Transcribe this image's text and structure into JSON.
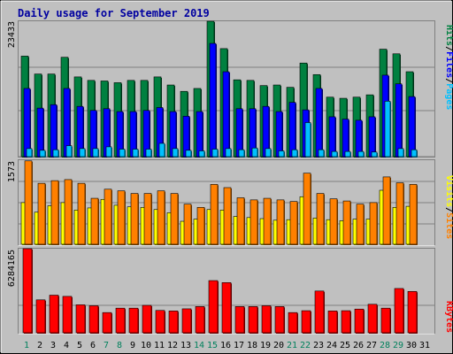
{
  "title": "Daily usage for September 2019",
  "colors": {
    "background": "#c0c0c0",
    "title": "#0000a0",
    "hits": "#008040",
    "files": "#0000ff",
    "pages": "#00c0ff",
    "visits": "#ffff00",
    "sites": "#ff8000",
    "kbytes": "#ff0000",
    "weekend_day": "#00805c",
    "weekday": "#000000"
  },
  "chart_data": [
    {
      "type": "bar",
      "name": "hits-files-pages",
      "ymax_label": "23433",
      "legend": [
        "Pages",
        "/",
        "Files",
        "/",
        "Hits"
      ],
      "ylim": [
        0,
        23433
      ],
      "categories": [
        "1",
        "2",
        "3",
        "4",
        "5",
        "6",
        "7",
        "8",
        "9",
        "10",
        "11",
        "12",
        "13",
        "14",
        "15",
        "16",
        "17",
        "18",
        "19",
        "20",
        "21",
        "22",
        "23",
        "24",
        "25",
        "26",
        "27",
        "28",
        "29",
        "30",
        "31"
      ],
      "series": [
        {
          "name": "Hits",
          "values": [
            17400,
            14300,
            14300,
            17200,
            13800,
            13200,
            13100,
            12800,
            13200,
            13200,
            13800,
            12400,
            11300,
            11800,
            23433,
            18700,
            13300,
            13200,
            12300,
            12400,
            12000,
            16200,
            14200,
            10300,
            10100,
            10300,
            10700,
            18600,
            17800,
            14700,
            null
          ]
        },
        {
          "name": "Files",
          "values": [
            11800,
            8400,
            9000,
            11800,
            8700,
            8000,
            8300,
            7800,
            7800,
            8000,
            8500,
            7800,
            7000,
            7800,
            19600,
            14700,
            8300,
            8300,
            8700,
            7800,
            9400,
            8100,
            11800,
            6900,
            6500,
            6300,
            6900,
            14100,
            12600,
            10400,
            null
          ]
        },
        {
          "name": "Pages",
          "values": [
            1400,
            1100,
            1200,
            1900,
            1400,
            1400,
            1700,
            1300,
            1300,
            1300,
            2300,
            1400,
            1100,
            1000,
            1300,
            1400,
            1200,
            1500,
            1400,
            1000,
            1200,
            5900,
            1200,
            900,
            900,
            900,
            800,
            9600,
            1400,
            1200,
            null
          ]
        }
      ]
    },
    {
      "type": "bar",
      "name": "sites-visits",
      "ymax_label": "1573",
      "legend": [
        "Sites",
        "/",
        "Visits"
      ],
      "ylim": [
        0,
        1573
      ],
      "categories": [
        "1",
        "2",
        "3",
        "4",
        "5",
        "6",
        "7",
        "8",
        "9",
        "10",
        "11",
        "12",
        "13",
        "14",
        "15",
        "16",
        "17",
        "18",
        "19",
        "20",
        "21",
        "22",
        "23",
        "24",
        "25",
        "26",
        "27",
        "28",
        "29",
        "30",
        "31"
      ],
      "series": [
        {
          "name": "Sites",
          "values": [
            1560,
            1140,
            1190,
            1210,
            1140,
            860,
            1030,
            1000,
            950,
            950,
            1000,
            950,
            750,
            690,
            1120,
            1060,
            870,
            830,
            860,
            830,
            800,
            1330,
            950,
            850,
            810,
            750,
            780,
            1260,
            1150,
            1120,
            null
          ]
        },
        {
          "name": "Visits",
          "values": [
            780,
            600,
            720,
            780,
            640,
            680,
            840,
            730,
            700,
            690,
            650,
            590,
            430,
            470,
            650,
            640,
            520,
            500,
            480,
            450,
            460,
            890,
            490,
            460,
            440,
            470,
            470,
            1010,
            690,
            710,
            null
          ]
        }
      ]
    },
    {
      "type": "bar",
      "name": "kbytes",
      "ymax_label": "6284165",
      "legend": [
        "KBytes"
      ],
      "ylim": [
        0,
        6284165
      ],
      "categories": [
        "1",
        "2",
        "3",
        "4",
        "5",
        "6",
        "7",
        "8",
        "9",
        "10",
        "11",
        "12",
        "13",
        "14",
        "15",
        "16",
        "17",
        "18",
        "19",
        "20",
        "21",
        "22",
        "23",
        "24",
        "25",
        "26",
        "27",
        "28",
        "29",
        "30",
        "31"
      ],
      "series": [
        {
          "name": "KBytes",
          "values": [
            6284165,
            2460000,
            2810000,
            2720000,
            2090000,
            2020000,
            1510000,
            1840000,
            1840000,
            2050000,
            1670000,
            1630000,
            1790000,
            1960000,
            3900000,
            3750000,
            1960000,
            1960000,
            2020000,
            1960000,
            1510000,
            1650000,
            3120000,
            1630000,
            1650000,
            1770000,
            2130000,
            1840000,
            3310000,
            3090000,
            null
          ]
        }
      ]
    }
  ],
  "x_axis": {
    "labels": [
      "1",
      "2",
      "3",
      "4",
      "5",
      "6",
      "7",
      "8",
      "9",
      "10",
      "11",
      "12",
      "13",
      "14",
      "15",
      "16",
      "17",
      "18",
      "19",
      "20",
      "21",
      "22",
      "23",
      "24",
      "25",
      "26",
      "27",
      "28",
      "29",
      "30",
      "31"
    ],
    "weekend_days": [
      "1",
      "7",
      "8",
      "14",
      "15",
      "21",
      "22",
      "28",
      "29"
    ]
  }
}
